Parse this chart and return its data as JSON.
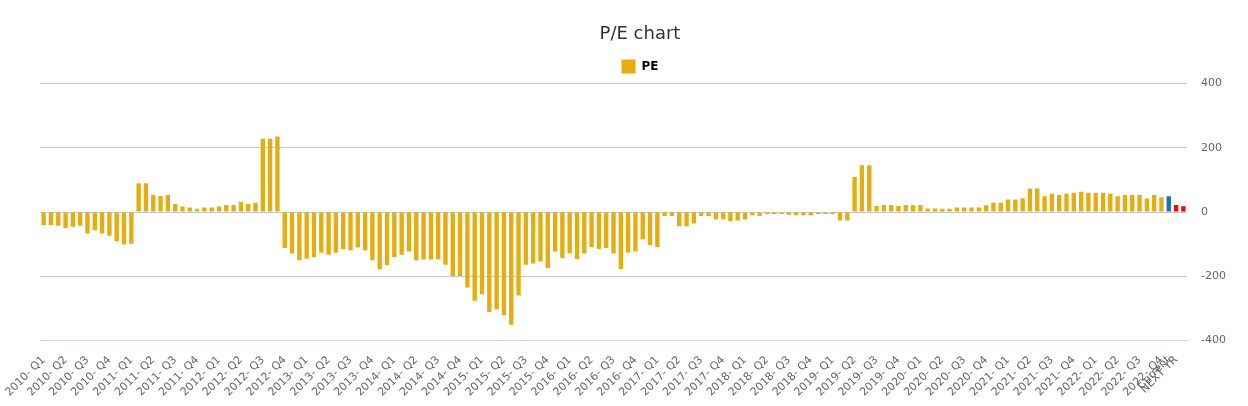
{
  "chart_data": {
    "type": "bar",
    "title": "P/E chart",
    "categories": [
      "2010- Q1",
      null,
      null,
      "2010- Q2",
      null,
      null,
      "2010- Q3",
      null,
      null,
      "2010- Q4",
      null,
      null,
      "2011- Q1",
      null,
      null,
      "2011- Q2",
      null,
      null,
      "2011- Q3",
      null,
      null,
      "2011- Q4",
      null,
      null,
      "2012- Q1",
      null,
      null,
      "2012- Q2",
      null,
      null,
      "2012- Q3",
      null,
      null,
      "2012- Q4",
      null,
      null,
      "2013- Q1",
      null,
      null,
      "2013- Q2",
      null,
      null,
      "2013- Q3",
      null,
      null,
      "2013- Q4",
      null,
      null,
      "2014- Q1",
      null,
      null,
      "2014- Q2",
      null,
      null,
      "2014- Q3",
      null,
      null,
      "2014- Q4",
      null,
      null,
      "2015- Q1",
      null,
      null,
      "2015- Q2",
      null,
      null,
      "2015- Q3",
      null,
      null,
      "2015- Q4",
      null,
      null,
      "2016- Q1",
      null,
      null,
      "2016- Q2",
      null,
      null,
      "2016- Q3",
      null,
      null,
      "2016- Q4",
      null,
      null,
      "2017- Q1",
      null,
      null,
      "2017- Q2",
      null,
      null,
      "2017- Q3",
      null,
      null,
      "2017- Q4",
      null,
      null,
      "2018- Q1",
      null,
      null,
      "2018- Q2",
      null,
      null,
      "2018- Q3",
      null,
      null,
      "2018- Q4",
      null,
      null,
      "2019- Q1",
      null,
      null,
      "2019- Q2",
      null,
      null,
      "2019- Q3",
      null,
      null,
      "2019- Q4",
      null,
      null,
      "2020- Q1",
      null,
      null,
      "2020- Q2",
      null,
      null,
      "2020- Q3",
      null,
      null,
      "2020- Q4",
      null,
      null,
      "2021- Q1",
      null,
      null,
      "2021- Q2",
      null,
      null,
      "2021- Q3",
      null,
      null,
      "2021- Q4",
      null,
      null,
      "2022- Q1",
      null,
      null,
      "2022- Q2",
      null,
      null,
      "2022- Q3",
      null,
      null,
      "2022- Q4",
      "Current",
      "NEXT YR",
      null
    ],
    "series": [
      {
        "name": "PE",
        "color": "#e6ad10",
        "values": [
          -40,
          -40,
          -43,
          -50,
          -46,
          -43,
          -67,
          -57,
          -67,
          -74,
          -91,
          -101,
          -99,
          90,
          90,
          53,
          50,
          53,
          25,
          17,
          14,
          10,
          14,
          14,
          17,
          22,
          22,
          32,
          25,
          29,
          228,
          228,
          235,
          -112,
          -129,
          -150,
          -145,
          -141,
          -127,
          -133,
          -127,
          -116,
          -119,
          -110,
          -120,
          -150,
          -178,
          -165,
          -140,
          -133,
          -123,
          -150,
          -148,
          -148,
          -148,
          -164,
          -199,
          -199,
          -235,
          -276,
          -256,
          -311,
          -303,
          -321,
          -351,
          -260,
          -164,
          -160,
          -154,
          -174,
          -123,
          -144,
          -129,
          -146,
          -129,
          -109,
          -115,
          -112,
          -129,
          -177,
          -126,
          -123,
          -85,
          -103,
          -109,
          -12,
          -12,
          -44,
          -44,
          -36,
          -12,
          -12,
          -22,
          -22,
          -29,
          -26,
          -22,
          -10,
          -12,
          -6,
          -6,
          -6,
          -8,
          -10,
          -10,
          -10,
          -6,
          -6,
          -6,
          -26,
          -26,
          109,
          146,
          146,
          19,
          22,
          22,
          19,
          22,
          22,
          22,
          11,
          11,
          10,
          10,
          14,
          14,
          14,
          14,
          21,
          29,
          29,
          39,
          39,
          43,
          73,
          73,
          49,
          57,
          53,
          57,
          60,
          63,
          60,
          60,
          60,
          57,
          49,
          53,
          53,
          53,
          42,
          53,
          46,
          49,
          22,
          18
        ],
        "colors": [
          "#e6ad10",
          "#e6ad10",
          "#e6ad10",
          "#e6ad10",
          "#e6ad10",
          "#e6ad10",
          "#e6ad10",
          "#e6ad10",
          "#e6ad10",
          "#e6ad10",
          "#e6ad10",
          "#e6ad10",
          "#e6ad10",
          "#e6ad10",
          "#e6ad10",
          "#e6ad10",
          "#e6ad10",
          "#e6ad10",
          "#e6ad10",
          "#e6ad10",
          "#e6ad10",
          "#e6ad10",
          "#e6ad10",
          "#e6ad10",
          "#e6ad10",
          "#e6ad10",
          "#e6ad10",
          "#e6ad10",
          "#e6ad10",
          "#e6ad10",
          "#e6ad10",
          "#e6ad10",
          "#e6ad10",
          "#e6ad10",
          "#e6ad10",
          "#e6ad10",
          "#e6ad10",
          "#e6ad10",
          "#e6ad10",
          "#e6ad10",
          "#e6ad10",
          "#e6ad10",
          "#e6ad10",
          "#e6ad10",
          "#e6ad10",
          "#e6ad10",
          "#e6ad10",
          "#e6ad10",
          "#e6ad10",
          "#e6ad10",
          "#e6ad10",
          "#e6ad10",
          "#e6ad10",
          "#e6ad10",
          "#e6ad10",
          "#e6ad10",
          "#e6ad10",
          "#e6ad10",
          "#e6ad10",
          "#e6ad10",
          "#e6ad10",
          "#e6ad10",
          "#e6ad10",
          "#e6ad10",
          "#e6ad10",
          "#e6ad10",
          "#e6ad10",
          "#e6ad10",
          "#e6ad10",
          "#e6ad10",
          "#e6ad10",
          "#e6ad10",
          "#e6ad10",
          "#e6ad10",
          "#e6ad10",
          "#e6ad10",
          "#e6ad10",
          "#e6ad10",
          "#e6ad10",
          "#e6ad10",
          "#e6ad10",
          "#e6ad10",
          "#e6ad10",
          "#e6ad10",
          "#e6ad10",
          "#e6ad10",
          "#e6ad10",
          "#e6ad10",
          "#e6ad10",
          "#e6ad10",
          "#e6ad10",
          "#e6ad10",
          "#e6ad10",
          "#e6ad10",
          "#e6ad10",
          "#e6ad10",
          "#e6ad10",
          "#e6ad10",
          "#e6ad10",
          "#e6ad10",
          "#e6ad10",
          "#e6ad10",
          "#e6ad10",
          "#e6ad10",
          "#e6ad10",
          "#e6ad10",
          "#e6ad10",
          "#e6ad10",
          "#e6ad10",
          "#e6ad10",
          "#e6ad10",
          "#e6ad10",
          "#e6ad10",
          "#e6ad10",
          "#e6ad10",
          "#e6ad10",
          "#e6ad10",
          "#e6ad10",
          "#e6ad10",
          "#e6ad10",
          "#e6ad10",
          "#e6ad10",
          "#e6ad10",
          "#e6ad10",
          "#e6ad10",
          "#e6ad10",
          "#e6ad10",
          "#e6ad10",
          "#e6ad10",
          "#e6ad10",
          "#e6ad10",
          "#e6ad10",
          "#e6ad10",
          "#e6ad10",
          "#e6ad10",
          "#e6ad10",
          "#e6ad10",
          "#e6ad10",
          "#e6ad10",
          "#e6ad10",
          "#e6ad10",
          "#e6ad10",
          "#e6ad10",
          "#e6ad10",
          "#e6ad10",
          "#e6ad10",
          "#e6ad10",
          "#e6ad10",
          "#e6ad10",
          "#e6ad10",
          "#e6ad10",
          "#e6ad10",
          "#e6ad10",
          "#e6ad10",
          "#1f6fb4",
          "#ff0000",
          "#ff0000"
        ]
      }
    ],
    "ylim": [
      -400,
      400
    ],
    "yticks": [
      -400,
      -200,
      0,
      200,
      400
    ],
    "grid": "y",
    "legend": "top"
  }
}
